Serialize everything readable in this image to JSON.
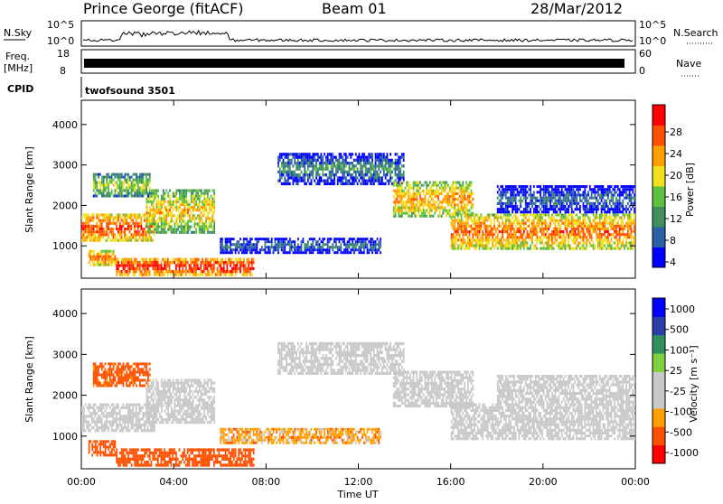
{
  "header": {
    "station": "Prince George (fitACF)",
    "beam": "Beam 01",
    "date": "28/Mar/2012"
  },
  "panels": {
    "nsky_label": "N.Sky",
    "nsky_ticks": [
      "10^5",
      "10^0"
    ],
    "nsearch_label": "N.Search",
    "freq_label_line1": "Freq.",
    "freq_label_line2": "[MHz]",
    "freq_ticks": [
      "18",
      "8"
    ],
    "nave_label": "Nave",
    "nave_ticks": [
      "60",
      "0"
    ],
    "cpid_label": "CPID",
    "cpid_value": "twofsound 3501"
  },
  "colors": {
    "power_scale": [
      "#0000ff",
      "#2b5fa8",
      "#3f8f5f",
      "#5fbf3f",
      "#f0e020",
      "#ff9f00",
      "#ff5000",
      "#ff0000"
    ],
    "velocity_scale": [
      "#ff0000",
      "#ff5000",
      "#ff9f00",
      "#c8c8c8",
      "#c8c8c8",
      "#7fcf3f",
      "#2f8f5f",
      "#2b3fa8",
      "#0000ff"
    ]
  },
  "chart_data": [
    {
      "type": "heatmap",
      "title": "",
      "xlabel": "Time UT",
      "ylabel": "Slant Range [km]",
      "xlim": [
        0,
        24
      ],
      "ylim": [
        200,
        4600
      ],
      "x_ticks": [
        "00:00",
        "04:00",
        "08:00",
        "12:00",
        "16:00",
        "20:00",
        "00:00"
      ],
      "y_ticks": [
        1000,
        2000,
        3000,
        4000
      ],
      "colorbar": {
        "label": "Power [dB]",
        "ticks": [
          "28",
          "24",
          "20",
          "16",
          "12",
          "8",
          "4"
        ],
        "range": [
          0,
          30
        ]
      },
      "echo_bands": [
        {
          "t": [
            0,
            3.2
          ],
          "r": [
            1100,
            1800
          ],
          "value": 26
        },
        {
          "t": [
            2.8,
            5.8
          ],
          "r": [
            1300,
            2400
          ],
          "value": 20
        },
        {
          "t": [
            0.5,
            3.0
          ],
          "r": [
            2200,
            2800
          ],
          "value": 16
        },
        {
          "t": [
            0.3,
            1.5
          ],
          "r": [
            500,
            900
          ],
          "value": 24
        },
        {
          "t": [
            1.5,
            7.5
          ],
          "r": [
            250,
            700
          ],
          "value": 28
        },
        {
          "t": [
            6.0,
            13.0
          ],
          "r": [
            800,
            1200
          ],
          "value": 8
        },
        {
          "t": [
            8.5,
            14.0
          ],
          "r": [
            2500,
            3300
          ],
          "value": 10
        },
        {
          "t": [
            13.5,
            17.0
          ],
          "r": [
            1700,
            2600
          ],
          "value": 22
        },
        {
          "t": [
            16.0,
            24.0
          ],
          "r": [
            900,
            1800
          ],
          "value": 24
        },
        {
          "t": [
            18.0,
            24.0
          ],
          "r": [
            1800,
            2500
          ],
          "value": 8
        }
      ]
    },
    {
      "type": "heatmap",
      "title": "",
      "xlabel": "Time UT",
      "ylabel": "Slant Range [km]",
      "xlim": [
        0,
        24
      ],
      "ylim": [
        200,
        4600
      ],
      "x_ticks": [
        "00:00",
        "04:00",
        "08:00",
        "12:00",
        "16:00",
        "20:00",
        "00:00"
      ],
      "y_ticks": [
        1000,
        2000,
        3000,
        4000
      ],
      "colorbar": {
        "label": "Velocity [m s⁻¹]",
        "ticks": [
          "1000",
          "500",
          "100",
          "25",
          "-25",
          "-100",
          "-500",
          "-1000"
        ],
        "range": [
          -1000,
          1000
        ]
      },
      "echo_bands": [
        {
          "t": [
            0,
            3.2
          ],
          "r": [
            1100,
            1800
          ],
          "value": 0
        },
        {
          "t": [
            2.8,
            5.8
          ],
          "r": [
            1300,
            2400
          ],
          "value": 0
        },
        {
          "t": [
            0.5,
            3.0
          ],
          "r": [
            2200,
            2800
          ],
          "value": -150
        },
        {
          "t": [
            0.3,
            1.5
          ],
          "r": [
            500,
            900
          ],
          "value": -300
        },
        {
          "t": [
            1.5,
            7.5
          ],
          "r": [
            250,
            700
          ],
          "value": -300
        },
        {
          "t": [
            6.0,
            13.0
          ],
          "r": [
            800,
            1200
          ],
          "value": -60
        },
        {
          "t": [
            8.5,
            14.0
          ],
          "r": [
            2500,
            3300
          ],
          "value": 0
        },
        {
          "t": [
            13.5,
            17.0
          ],
          "r": [
            1700,
            2600
          ],
          "value": 0
        },
        {
          "t": [
            16.0,
            24.0
          ],
          "r": [
            900,
            1800
          ],
          "value": 0
        },
        {
          "t": [
            18.0,
            24.0
          ],
          "r": [
            1800,
            2500
          ],
          "value": 0
        }
      ]
    }
  ]
}
